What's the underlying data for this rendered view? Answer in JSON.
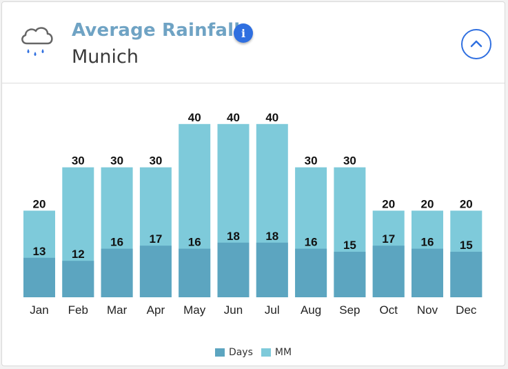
{
  "header": {
    "title": "Average Rainfall",
    "subtitle": "Munich",
    "weather_icon": "cloud-rain-icon",
    "info_icon": "info-icon",
    "info_glyph": "i",
    "collapse_icon": "chevron-up-icon"
  },
  "colors": {
    "days": "#5ca5c0",
    "mm": "#7ecada",
    "accent": "#2f6fe0",
    "title": "#6fa3c4"
  },
  "chart_data": {
    "type": "bar",
    "stacked": true,
    "categories": [
      "Jan",
      "Feb",
      "Mar",
      "Apr",
      "May",
      "Jun",
      "Jul",
      "Aug",
      "Sep",
      "Oct",
      "Nov",
      "Dec"
    ],
    "series": [
      {
        "name": "Days",
        "values": [
          13,
          12,
          16,
          17,
          16,
          18,
          18,
          16,
          15,
          17,
          16,
          15
        ]
      },
      {
        "name": "MM",
        "values": [
          20,
          30,
          30,
          30,
          40,
          40,
          40,
          30,
          30,
          20,
          20,
          20
        ]
      }
    ],
    "title": "Average Rainfall",
    "xlabel": "",
    "ylabel": "",
    "grid": false,
    "legend": "bottom-center"
  },
  "legend": {
    "days_label": "Days",
    "mm_label": "MM"
  }
}
